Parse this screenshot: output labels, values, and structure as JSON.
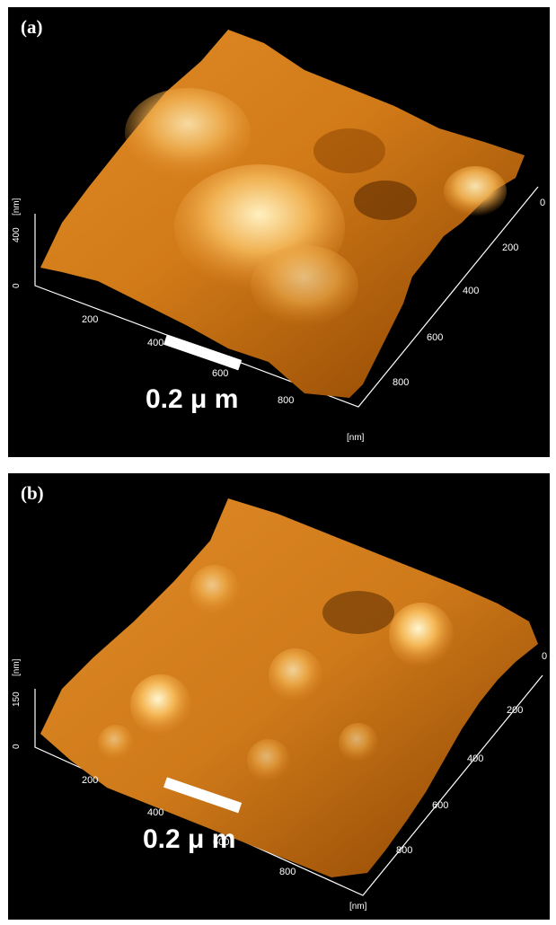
{
  "panels": [
    {
      "label": "(a)",
      "z_axis": {
        "unit": "[nm]",
        "max": "400",
        "zero": "0"
      },
      "x_axis": {
        "ticks": [
          "200",
          "400",
          "600",
          "800"
        ]
      },
      "y_axis": {
        "ticks": [
          "0",
          "200",
          "400",
          "600",
          "800"
        ],
        "unit": "[nm]"
      },
      "scale_bar": "0.2 μ m"
    },
    {
      "label": "(b)",
      "z_axis": {
        "unit": "[nm]",
        "max": "150",
        "zero": "0"
      },
      "x_axis": {
        "ticks": [
          "200",
          "400",
          "600",
          "800"
        ]
      },
      "y_axis": {
        "ticks": [
          "0",
          "200",
          "400",
          "600",
          "800"
        ],
        "unit": "[nm]"
      },
      "scale_bar": "0.2 μ m"
    }
  ],
  "colors": {
    "surface_dark": "#7a3a00",
    "surface_mid": "#d98a1e",
    "surface_light": "#ffe7a8",
    "background": "#000000"
  }
}
